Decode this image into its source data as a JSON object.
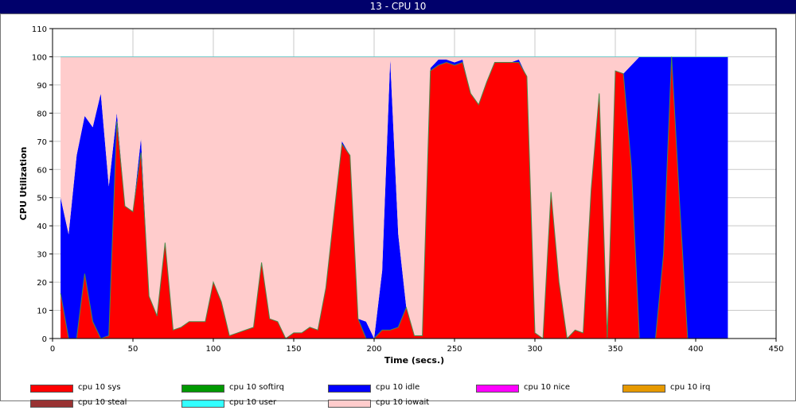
{
  "window": {
    "title": "13 - CPU 10"
  },
  "chart_data": {
    "type": "area",
    "stacked": true,
    "title": "13 - CPU 10",
    "xlabel": "Time (secs.)",
    "ylabel": "CPU Utilization",
    "xlim": [
      0,
      450
    ],
    "ylim": [
      0,
      110
    ],
    "xticks": [
      "0",
      "50",
      "100",
      "150",
      "200",
      "250",
      "300",
      "350",
      "400",
      "450"
    ],
    "yticks": [
      "0",
      "10",
      "20",
      "30",
      "40",
      "50",
      "60",
      "70",
      "80",
      "90",
      "100",
      "110"
    ],
    "grid": true,
    "legend_position": "bottom",
    "x": [
      5,
      10,
      15,
      20,
      25,
      30,
      35,
      40,
      45,
      50,
      55,
      60,
      65,
      70,
      75,
      80,
      85,
      90,
      95,
      100,
      105,
      110,
      115,
      120,
      125,
      130,
      135,
      140,
      145,
      150,
      155,
      160,
      165,
      170,
      175,
      180,
      185,
      190,
      195,
      200,
      205,
      210,
      215,
      220,
      225,
      230,
      235,
      240,
      245,
      250,
      255,
      260,
      265,
      270,
      275,
      280,
      285,
      290,
      295,
      300,
      305,
      310,
      315,
      320,
      325,
      330,
      335,
      340,
      345,
      350,
      355,
      360,
      365,
      370,
      375,
      380,
      385,
      390,
      395,
      400,
      405,
      410,
      415,
      420
    ],
    "series": [
      {
        "name": "cpu 10 sys",
        "color": "#ff0000",
        "values": [
          16,
          0,
          0,
          23,
          6,
          0,
          1,
          77,
          47,
          45,
          66,
          15,
          8,
          34,
          3,
          4,
          6,
          6,
          6,
          20,
          13,
          1,
          2,
          3,
          4,
          27,
          7,
          6,
          0,
          2,
          2,
          4,
          3,
          18,
          44,
          69,
          65,
          7,
          0,
          0,
          3,
          3,
          4,
          11,
          1,
          1,
          95,
          97,
          98,
          97,
          98,
          87,
          83,
          91,
          98,
          98,
          98,
          98,
          93,
          2,
          0,
          52,
          20,
          0,
          3,
          2,
          53,
          87,
          0,
          95,
          94,
          61,
          0,
          0,
          0,
          30,
          100,
          48,
          0,
          0,
          0,
          0,
          0,
          0
        ]
      },
      {
        "name": "cpu 10 softirq",
        "color": "#009900",
        "values": [
          0,
          0,
          0,
          0,
          0,
          0,
          0,
          0,
          0,
          0,
          0,
          0,
          0,
          0,
          0,
          0,
          0,
          0,
          0,
          0,
          0,
          0,
          0,
          0,
          0,
          0,
          0,
          0,
          0,
          0,
          0,
          0,
          0,
          0,
          0,
          0,
          0,
          0,
          0,
          0,
          0,
          0,
          0,
          0,
          0,
          0,
          0,
          0,
          0,
          0,
          0,
          0,
          0,
          0,
          0,
          0,
          0,
          0,
          0,
          0,
          0,
          0,
          0,
          0,
          0,
          0,
          0,
          0,
          0,
          0,
          0,
          0,
          0,
          0,
          0,
          0,
          0,
          0,
          0,
          0,
          0,
          0,
          0,
          0
        ]
      },
      {
        "name": "cpu 10 idle",
        "color": "#0000ff",
        "values": [
          34,
          37,
          65,
          56,
          69,
          87,
          53,
          3,
          0,
          0,
          5,
          0,
          0,
          0,
          0,
          0,
          0,
          0,
          0,
          0,
          0,
          0,
          0,
          0,
          0,
          0,
          0,
          0,
          0,
          0,
          0,
          0,
          0,
          0,
          0,
          1,
          0,
          0,
          6,
          0,
          21,
          96,
          33,
          0,
          0,
          0,
          1,
          2,
          1,
          1,
          1,
          0,
          0,
          0,
          0,
          0,
          0,
          1,
          0,
          0,
          0,
          0,
          0,
          0,
          0,
          0,
          0,
          0,
          0,
          0,
          0,
          36,
          100,
          100,
          100,
          70,
          0,
          52,
          100,
          100,
          100,
          100,
          100,
          100
        ]
      },
      {
        "name": "cpu 10 nice",
        "color": "#ff00ff",
        "values": [
          0,
          0,
          0,
          0,
          0,
          0,
          0,
          0,
          0,
          0,
          0,
          0,
          0,
          0,
          0,
          0,
          0,
          0,
          0,
          0,
          0,
          0,
          0,
          0,
          0,
          0,
          0,
          0,
          0,
          0,
          0,
          0,
          0,
          0,
          0,
          0,
          0,
          0,
          0,
          0,
          0,
          0,
          0,
          0,
          0,
          0,
          0,
          0,
          0,
          0,
          0,
          0,
          0,
          0,
          0,
          0,
          0,
          0,
          0,
          0,
          0,
          0,
          0,
          0,
          0,
          0,
          0,
          0,
          0,
          0,
          0,
          0,
          0,
          0,
          0,
          0,
          0,
          0,
          0,
          0,
          0,
          0,
          0,
          0
        ]
      },
      {
        "name": "cpu 10 irq",
        "color": "#e69900",
        "values": [
          0,
          0,
          0,
          0,
          0,
          0,
          0,
          0,
          0,
          0,
          0,
          0,
          0,
          0,
          0,
          0,
          0,
          0,
          0,
          0,
          0,
          0,
          0,
          0,
          0,
          0,
          0,
          0,
          0,
          0,
          0,
          0,
          0,
          0,
          0,
          0,
          0,
          0,
          0,
          0,
          0,
          0,
          0,
          0,
          0,
          0,
          0,
          0,
          0,
          0,
          0,
          0,
          0,
          0,
          0,
          0,
          0,
          0,
          0,
          0,
          0,
          0,
          0,
          0,
          0,
          0,
          0,
          0,
          0,
          0,
          0,
          0,
          0,
          0,
          0,
          0,
          0,
          0,
          0,
          0,
          0,
          0,
          0,
          0
        ]
      },
      {
        "name": "cpu 10 steal",
        "color": "#993333",
        "values": [
          0,
          0,
          0,
          0,
          0,
          0,
          0,
          0,
          0,
          0,
          0,
          0,
          0,
          0,
          0,
          0,
          0,
          0,
          0,
          0,
          0,
          0,
          0,
          0,
          0,
          0,
          0,
          0,
          0,
          0,
          0,
          0,
          0,
          0,
          0,
          0,
          0,
          0,
          0,
          0,
          0,
          0,
          0,
          0,
          0,
          0,
          0,
          0,
          0,
          0,
          0,
          0,
          0,
          0,
          0,
          0,
          0,
          0,
          0,
          0,
          0,
          0,
          0,
          0,
          0,
          0,
          0,
          0,
          0,
          0,
          0,
          0,
          0,
          0,
          0,
          0,
          0,
          0,
          0,
          0,
          0,
          0,
          0,
          0
        ]
      },
      {
        "name": "cpu 10 user",
        "color": "#33ffff",
        "values": [
          0,
          0,
          0,
          0,
          0,
          0,
          0,
          0,
          0,
          0,
          0,
          0,
          0,
          0,
          0,
          0,
          0,
          0,
          0,
          0,
          0,
          0,
          0,
          0,
          0,
          0,
          0,
          0,
          0,
          0,
          0,
          0,
          0,
          0,
          0,
          0,
          0,
          0,
          0,
          0,
          0,
          0,
          0,
          0,
          0,
          0,
          0,
          0,
          0,
          0,
          0,
          0,
          0,
          0,
          0,
          0,
          0,
          0,
          0,
          0,
          0,
          0,
          0,
          0,
          0,
          0,
          0,
          0,
          0,
          0,
          0,
          0,
          0,
          0,
          0,
          0,
          0,
          0,
          0,
          0,
          0,
          0,
          0,
          0
        ]
      },
      {
        "name": "cpu 10 iowait",
        "color": "#ffcccc",
        "values": [
          50,
          63,
          35,
          21,
          25,
          13,
          46,
          20,
          53,
          55,
          29,
          85,
          92,
          66,
          97,
          96,
          94,
          94,
          94,
          80,
          87,
          99,
          98,
          97,
          96,
          73,
          93,
          94,
          100,
          98,
          98,
          96,
          97,
          82,
          56,
          30,
          35,
          93,
          94,
          100,
          76,
          1,
          63,
          89,
          99,
          99,
          4,
          1,
          1,
          2,
          1,
          13,
          17,
          9,
          2,
          2,
          2,
          1,
          7,
          98,
          100,
          48,
          80,
          100,
          97,
          98,
          47,
          13,
          100,
          5,
          6,
          3,
          0,
          0,
          0,
          0,
          0,
          0,
          0,
          0,
          0,
          0,
          0,
          0
        ]
      }
    ]
  }
}
